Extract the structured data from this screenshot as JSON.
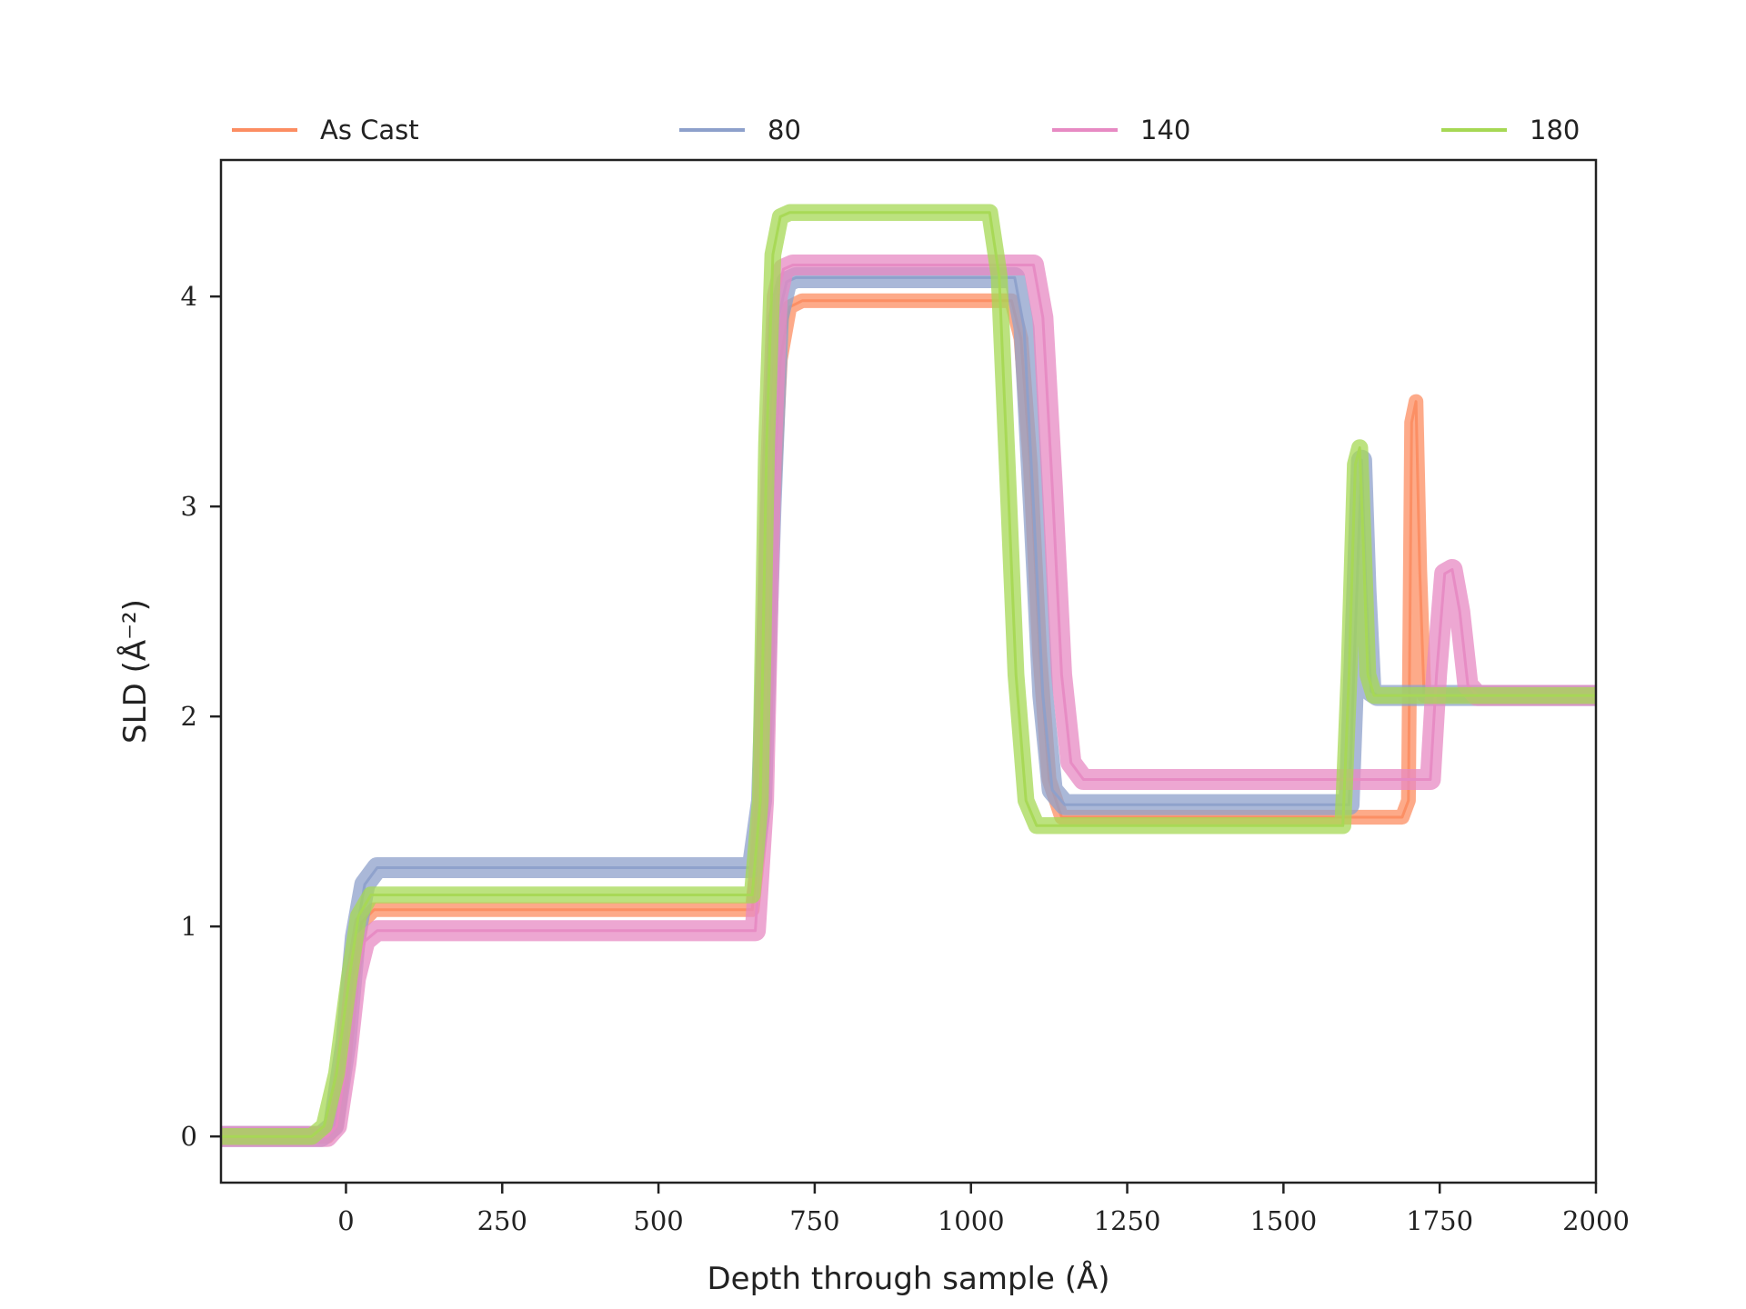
{
  "chart_data": {
    "type": "line",
    "xlabel": "Depth through sample (Å)",
    "ylabel": "SLD (Å⁻²)",
    "xlim": [
      -200,
      2000
    ],
    "ylim": [
      -0.22,
      4.65
    ],
    "xticks": [
      0,
      250,
      500,
      750,
      1000,
      1250,
      1500,
      1750,
      2000
    ],
    "yticks": [
      0,
      1,
      2,
      3,
      4
    ],
    "grid": false,
    "legend_position": "top",
    "series": [
      {
        "name": "As Cast",
        "color": "#fc8d62",
        "band": 0.07,
        "x": [
          -200,
          -30,
          -15,
          -5,
          10,
          25,
          45,
          650,
          665,
          680,
          695,
          710,
          730,
          1065,
          1080,
          1095,
          1110,
          1125,
          1145,
          1690,
          1700,
          1705,
          1712,
          1718,
          1725,
          1740,
          2000
        ],
        "y": [
          0,
          0,
          0.05,
          0.3,
          0.75,
          1.02,
          1.08,
          1.08,
          1.5,
          2.8,
          3.7,
          3.95,
          3.98,
          3.98,
          3.8,
          3.2,
          2.3,
          1.7,
          1.52,
          1.52,
          1.6,
          3.4,
          3.5,
          2.7,
          2.1,
          2.1,
          2.1
        ]
      },
      {
        "name": "80",
        "color": "#8da0cb",
        "band": 0.1,
        "x": [
          -200,
          -40,
          -20,
          0,
          15,
          30,
          50,
          650,
          665,
          680,
          692,
          705,
          720,
          1070,
          1085,
          1100,
          1115,
          1130,
          1150,
          1605,
          1615,
          1625,
          1632,
          1640,
          1650,
          2000
        ],
        "y": [
          0,
          0,
          0.05,
          0.45,
          0.95,
          1.2,
          1.28,
          1.28,
          1.6,
          3.0,
          3.9,
          4.07,
          4.09,
          4.09,
          3.85,
          3.0,
          2.1,
          1.65,
          1.58,
          1.58,
          2.4,
          3.22,
          2.6,
          2.12,
          2.1,
          2.1
        ]
      },
      {
        "name": "140",
        "color": "#e78ac3",
        "band": 0.1,
        "x": [
          -200,
          -30,
          -15,
          0,
          15,
          30,
          50,
          655,
          668,
          680,
          690,
          700,
          715,
          1100,
          1115,
          1130,
          1145,
          1160,
          1180,
          1735,
          1745,
          1758,
          1770,
          1782,
          1795,
          1810,
          2000
        ],
        "y": [
          0,
          0,
          0.05,
          0.35,
          0.75,
          0.93,
          0.98,
          0.98,
          1.6,
          3.2,
          4.0,
          4.13,
          4.15,
          4.15,
          3.9,
          3.1,
          2.2,
          1.78,
          1.7,
          1.7,
          2.2,
          2.68,
          2.7,
          2.5,
          2.15,
          2.1,
          2.1
        ]
      },
      {
        "name": "180",
        "color": "#a6d854",
        "band": 0.08,
        "x": [
          -200,
          -55,
          -35,
          -15,
          5,
          20,
          40,
          650,
          663,
          673,
          683,
          695,
          710,
          1030,
          1045,
          1058,
          1072,
          1088,
          1105,
          1595,
          1605,
          1615,
          1622,
          1628,
          1635,
          1645,
          2000
        ],
        "y": [
          0,
          0,
          0.05,
          0.3,
          0.75,
          1.05,
          1.15,
          1.15,
          1.6,
          3.3,
          4.2,
          4.38,
          4.4,
          4.4,
          4.1,
          3.2,
          2.2,
          1.6,
          1.48,
          1.48,
          2.2,
          3.2,
          3.28,
          2.8,
          2.2,
          2.1,
          2.1
        ]
      }
    ]
  }
}
